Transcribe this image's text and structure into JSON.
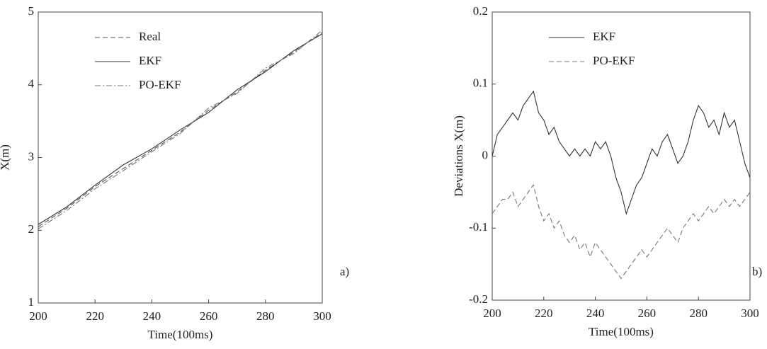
{
  "chart_data": [
    {
      "type": "line",
      "xlabel": "Time(100ms)",
      "ylabel": "X(m)",
      "panel_label": "a)",
      "x": [
        200,
        210,
        220,
        230,
        240,
        250,
        260,
        270,
        280,
        290,
        300
      ],
      "series": [
        {
          "name": "Real",
          "color": "#555555",
          "style": "dashed",
          "values": [
            2.05,
            2.3,
            2.6,
            2.85,
            3.1,
            3.35,
            3.65,
            3.9,
            4.2,
            4.45,
            4.72
          ]
        },
        {
          "name": "EKF",
          "color": "#333333",
          "style": "solid",
          "values": [
            2.08,
            2.32,
            2.62,
            2.9,
            3.12,
            3.38,
            3.62,
            3.93,
            4.18,
            4.47,
            4.7
          ]
        },
        {
          "name": "PO-EKF",
          "color": "#777777",
          "style": "dashdot",
          "values": [
            2.02,
            2.27,
            2.57,
            2.82,
            3.08,
            3.33,
            3.68,
            3.88,
            4.23,
            4.43,
            4.75
          ]
        }
      ],
      "xlim": [
        200,
        300
      ],
      "ylim": [
        1,
        5
      ],
      "xticks": [
        200,
        220,
        240,
        260,
        280,
        300
      ],
      "yticks": [
        1,
        2,
        3,
        4,
        5
      ],
      "legend": "upper left"
    },
    {
      "type": "line",
      "xlabel": "Time(100ms)",
      "ylabel": "Deviations X(m)",
      "panel_label": "b)",
      "x": [
        200,
        202,
        204,
        206,
        208,
        210,
        212,
        214,
        216,
        218,
        220,
        222,
        224,
        226,
        228,
        230,
        232,
        234,
        236,
        238,
        240,
        242,
        244,
        246,
        248,
        250,
        252,
        254,
        256,
        258,
        260,
        262,
        264,
        266,
        268,
        270,
        272,
        274,
        276,
        278,
        280,
        282,
        284,
        286,
        288,
        290,
        292,
        294,
        296,
        298,
        300
      ],
      "series": [
        {
          "name": "EKF",
          "color": "#333333",
          "style": "solid",
          "values": [
            0.0,
            0.03,
            0.04,
            0.05,
            0.06,
            0.05,
            0.07,
            0.08,
            0.09,
            0.06,
            0.05,
            0.03,
            0.04,
            0.02,
            0.01,
            0.0,
            0.01,
            0.0,
            0.01,
            0.0,
            0.02,
            0.01,
            0.02,
            0.0,
            -0.03,
            -0.05,
            -0.08,
            -0.06,
            -0.04,
            -0.03,
            -0.01,
            0.01,
            0.0,
            0.02,
            0.03,
            0.01,
            -0.01,
            0.0,
            0.02,
            0.05,
            0.07,
            0.06,
            0.04,
            0.05,
            0.03,
            0.06,
            0.04,
            0.05,
            0.02,
            -0.01,
            -0.03
          ]
        },
        {
          "name": "PO-EKF",
          "color": "#777777",
          "style": "dashed",
          "values": [
            -0.08,
            -0.07,
            -0.06,
            -0.06,
            -0.05,
            -0.07,
            -0.06,
            -0.05,
            -0.04,
            -0.07,
            -0.09,
            -0.08,
            -0.1,
            -0.09,
            -0.11,
            -0.12,
            -0.11,
            -0.13,
            -0.12,
            -0.14,
            -0.12,
            -0.13,
            -0.14,
            -0.15,
            -0.16,
            -0.17,
            -0.16,
            -0.15,
            -0.14,
            -0.13,
            -0.14,
            -0.13,
            -0.12,
            -0.11,
            -0.1,
            -0.11,
            -0.12,
            -0.1,
            -0.09,
            -0.08,
            -0.09,
            -0.08,
            -0.07,
            -0.08,
            -0.07,
            -0.06,
            -0.07,
            -0.06,
            -0.07,
            -0.06,
            -0.05
          ]
        }
      ],
      "xlim": [
        200,
        300
      ],
      "ylim": [
        -0.2,
        0.2
      ],
      "xticks": [
        200,
        220,
        240,
        260,
        280,
        300
      ],
      "yticks": [
        -0.2,
        -0.1,
        0,
        0.1,
        0.2
      ],
      "legend": "upper left"
    }
  ]
}
